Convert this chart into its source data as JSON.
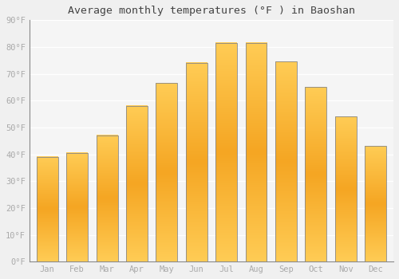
{
  "title": "Average monthly temperatures (°F ) in Baoshan",
  "months": [
    "Jan",
    "Feb",
    "Mar",
    "Apr",
    "May",
    "Jun",
    "Jul",
    "Aug",
    "Sep",
    "Oct",
    "Nov",
    "Dec"
  ],
  "values": [
    39,
    40.5,
    47,
    58,
    66.5,
    74,
    81.5,
    81.5,
    74.5,
    65,
    54,
    43
  ],
  "bar_color_top": "#F5A623",
  "bar_color_mid": "#FFCC55",
  "bar_color_bottom": "#F5A623",
  "bar_border_color": "#888888",
  "ylim": [
    0,
    90
  ],
  "yticks": [
    0,
    10,
    20,
    30,
    40,
    50,
    60,
    70,
    80,
    90
  ],
  "ytick_labels": [
    "0°F",
    "10°F",
    "20°F",
    "30°F",
    "40°F",
    "50°F",
    "60°F",
    "70°F",
    "80°F",
    "90°F"
  ],
  "bg_color": "#f0f0f0",
  "plot_bg_color": "#f5f5f5",
  "grid_color": "#ffffff",
  "title_fontsize": 9.5,
  "tick_fontsize": 7.5,
  "tick_color": "#aaaaaa",
  "bar_width": 0.72,
  "figsize": [
    5.0,
    3.5
  ],
  "dpi": 100
}
